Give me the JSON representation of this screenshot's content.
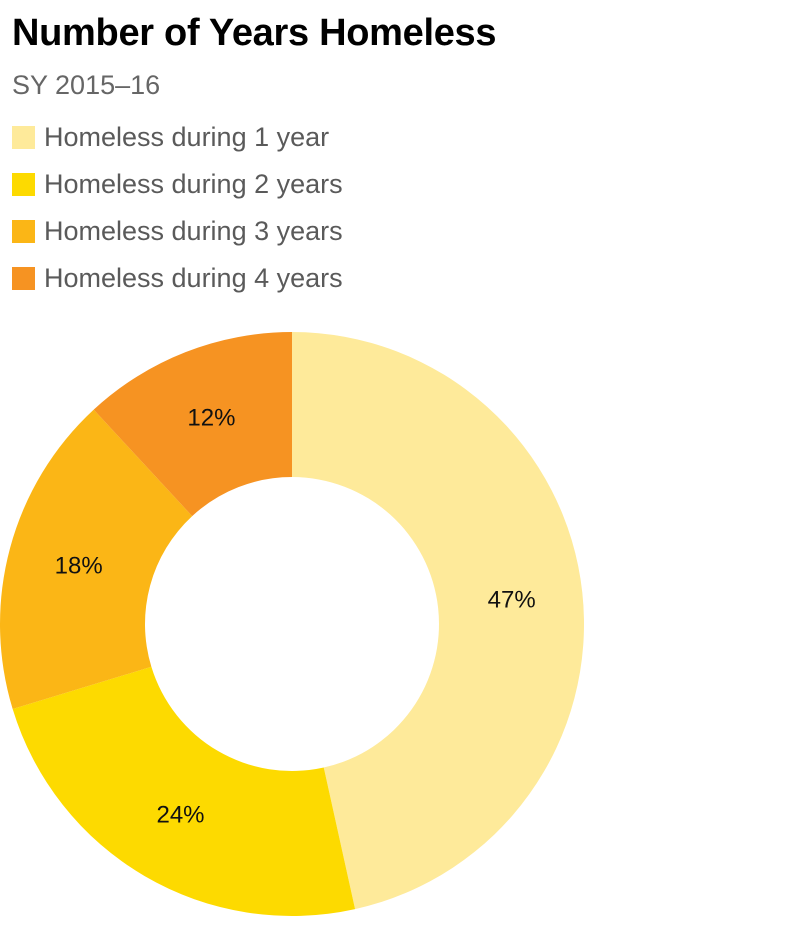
{
  "header": {
    "title": "Number of Years Homeless",
    "subtitle": "SY 2015–16"
  },
  "legend": {
    "items": [
      {
        "label": "Homeless during 1 year",
        "color": "#FEEA9A"
      },
      {
        "label": "Homeless during 2 years",
        "color": "#FDDA00"
      },
      {
        "label": "Homeless during 3 years",
        "color": "#FBB616"
      },
      {
        "label": "Homeless during 4 years",
        "color": "#F69322"
      }
    ]
  },
  "chart_data": {
    "type": "pie",
    "variant": "donut",
    "title": "Number of Years Homeless",
    "subtitle": "SY 2015–16",
    "categories": [
      "Homeless during 1 year",
      "Homeless during 2 years",
      "Homeless during 3 years",
      "Homeless during 4 years"
    ],
    "values": [
      47,
      24,
      18,
      12
    ],
    "labels": [
      "47%",
      "24%",
      "18%",
      "12%"
    ],
    "colors": [
      "#FEEA9A",
      "#FDDA00",
      "#FBB616",
      "#F69322"
    ],
    "start_angle": "12 o'clock",
    "direction": "clockwise",
    "legend_position": "top-left"
  }
}
